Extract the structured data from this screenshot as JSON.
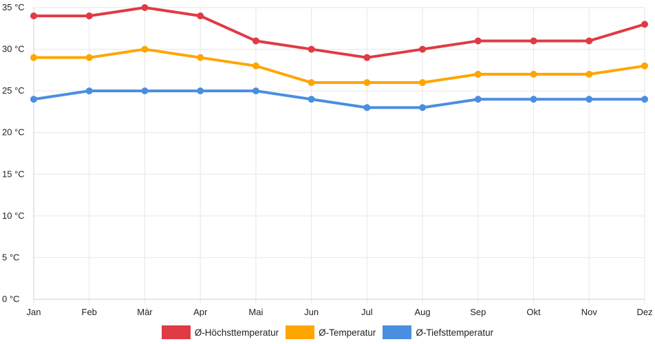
{
  "chart_data": {
    "type": "line",
    "categories": [
      "Jan",
      "Feb",
      "Mär",
      "Apr",
      "Mai",
      "Jun",
      "Jul",
      "Aug",
      "Sep",
      "Okt",
      "Nov",
      "Dez"
    ],
    "series": [
      {
        "name": "Ø-Höchsttemperatur",
        "color": "#e03a45",
        "values": [
          34,
          34,
          35,
          34,
          31,
          30,
          29,
          30,
          31,
          31,
          31,
          33
        ]
      },
      {
        "name": "Ø-Temperatur",
        "color": "#ffa500",
        "values": [
          29,
          29,
          30,
          29,
          28,
          26,
          26,
          26,
          27,
          27,
          27,
          28
        ]
      },
      {
        "name": "Ø-Tiefsttemperatur",
        "color": "#4a8ee0",
        "values": [
          24,
          25,
          25,
          25,
          25,
          24,
          23,
          23,
          24,
          24,
          24,
          24
        ]
      }
    ],
    "y_ticks": [
      0,
      5,
      10,
      15,
      20,
      25,
      30,
      35
    ],
    "y_unit": " °C",
    "ylim": [
      0,
      35
    ],
    "grid": true,
    "legend_position": "bottom"
  }
}
